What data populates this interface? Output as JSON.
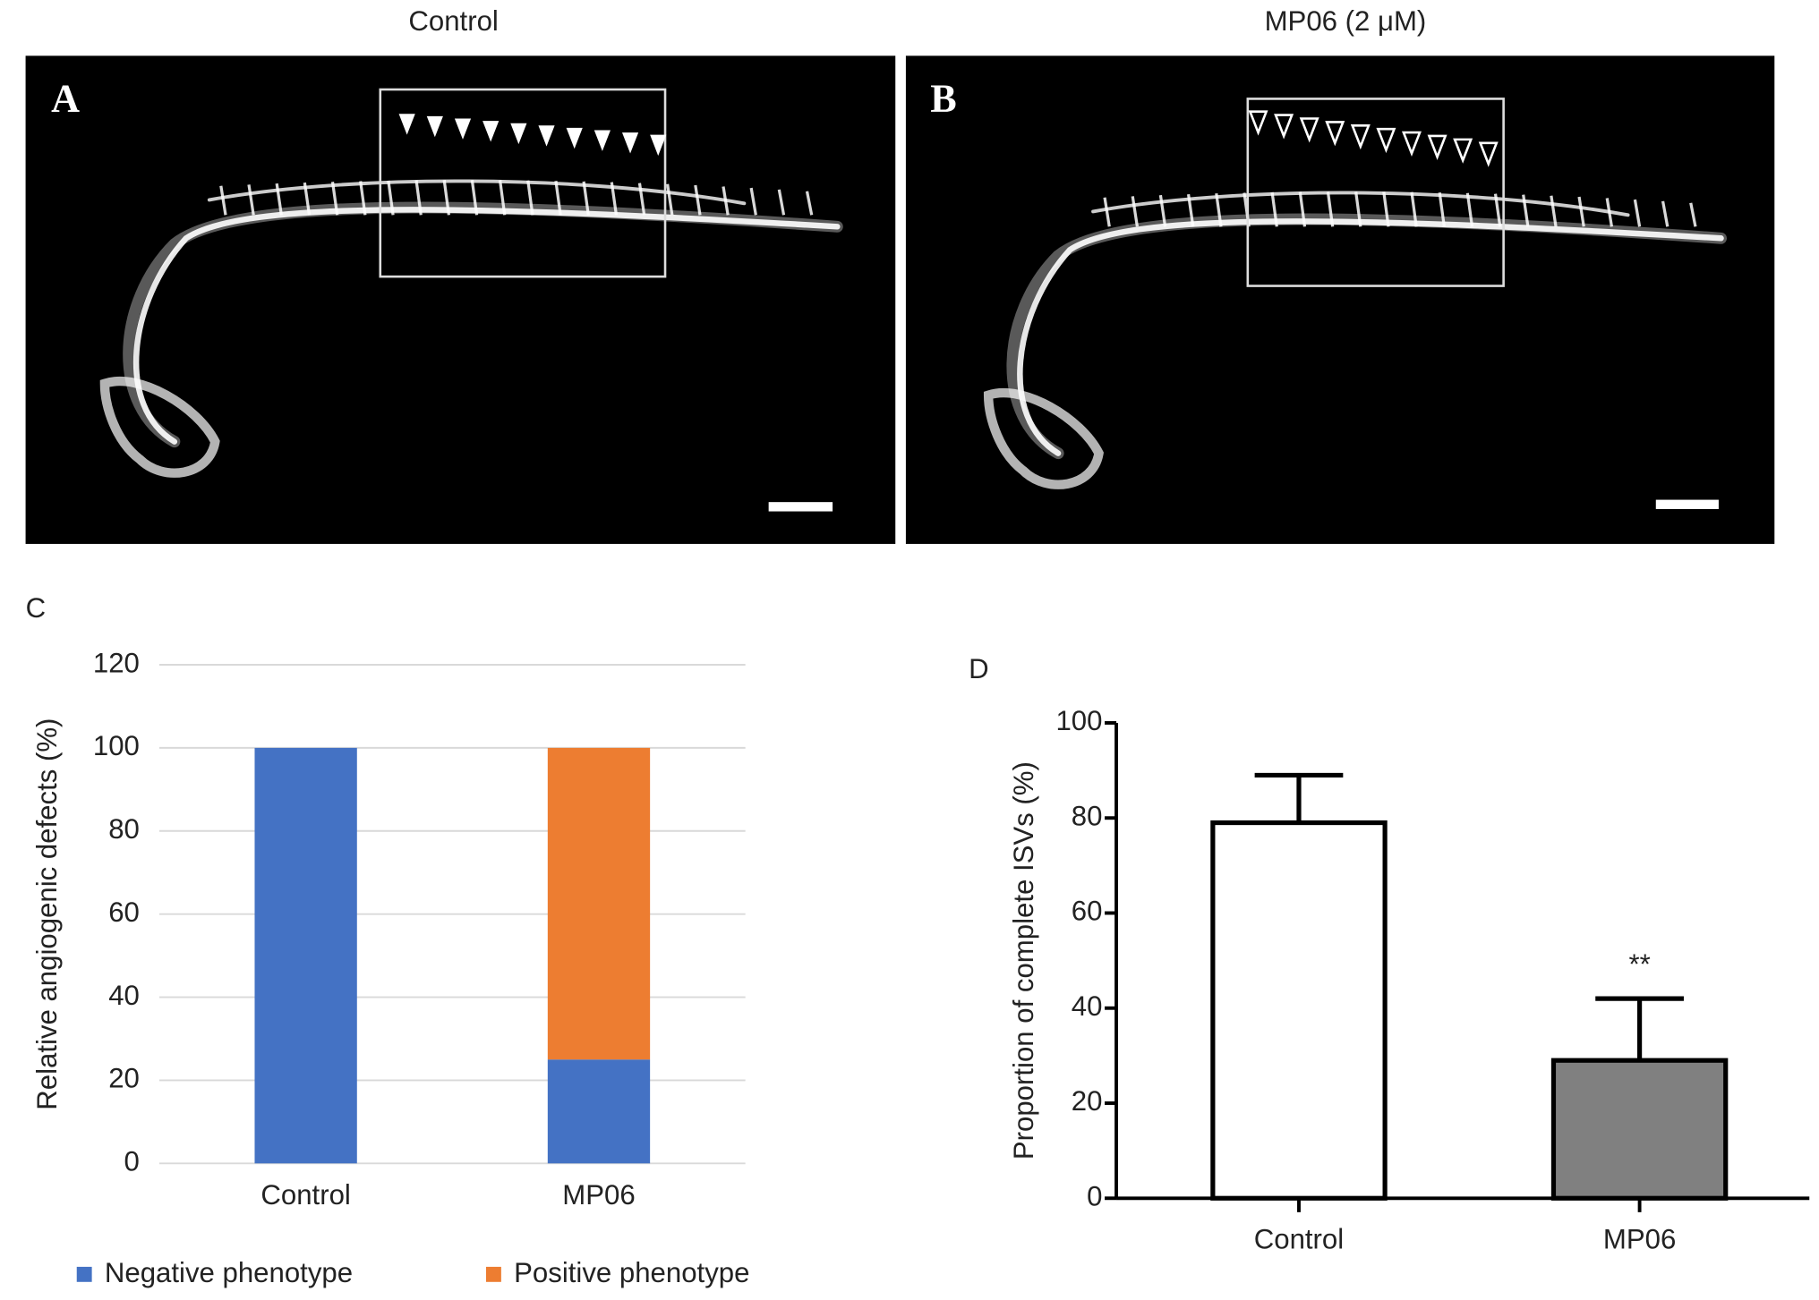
{
  "panels": [
    {
      "label": "A",
      "title": "Control"
    },
    {
      "label": "B",
      "title": "MP06 (2 μM)"
    }
  ],
  "chart_data": [
    {
      "type": "bar",
      "label": "C",
      "stacked": true,
      "ylabel": "Relative angiogenic defects (%)",
      "categories": [
        "Control",
        "MP06"
      ],
      "series": [
        {
          "name": "Negative phenotype",
          "color": "#4472c4",
          "values": [
            100,
            25
          ]
        },
        {
          "name": "Positive phenotype",
          "color": "#ed7d31",
          "values": [
            0,
            75
          ]
        }
      ],
      "ylim": [
        0,
        120
      ],
      "yticks": [
        0,
        20,
        40,
        60,
        80,
        100,
        120
      ],
      "grid": true,
      "legend": "bottom"
    },
    {
      "type": "bar",
      "label": "D",
      "ylabel": "Proportion of complete ISVs (%)",
      "categories": [
        "Control",
        "MP06"
      ],
      "values": [
        79,
        29
      ],
      "errors": [
        10,
        13
      ],
      "colors": [
        "#ffffff",
        "#808080"
      ],
      "annotations": [
        {
          "category": 1,
          "text": "**"
        }
      ],
      "ylim": [
        0,
        100
      ],
      "yticks": [
        0,
        20,
        40,
        60,
        80,
        100
      ],
      "grid": false
    }
  ]
}
